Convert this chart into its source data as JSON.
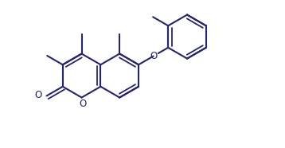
{
  "bg_color": "#ffffff",
  "line_color": "#25256e",
  "lw": 1.5,
  "lw_inner": 1.3,
  "fs": 7.5,
  "R": 0.27,
  "double_off": 0.042,
  "shrink": 0.08,
  "xlim": [
    0.05,
    3.55
  ],
  "ylim": [
    0.15,
    1.75
  ],
  "figw": 3.58,
  "figh": 1.86,
  "dpi": 100
}
